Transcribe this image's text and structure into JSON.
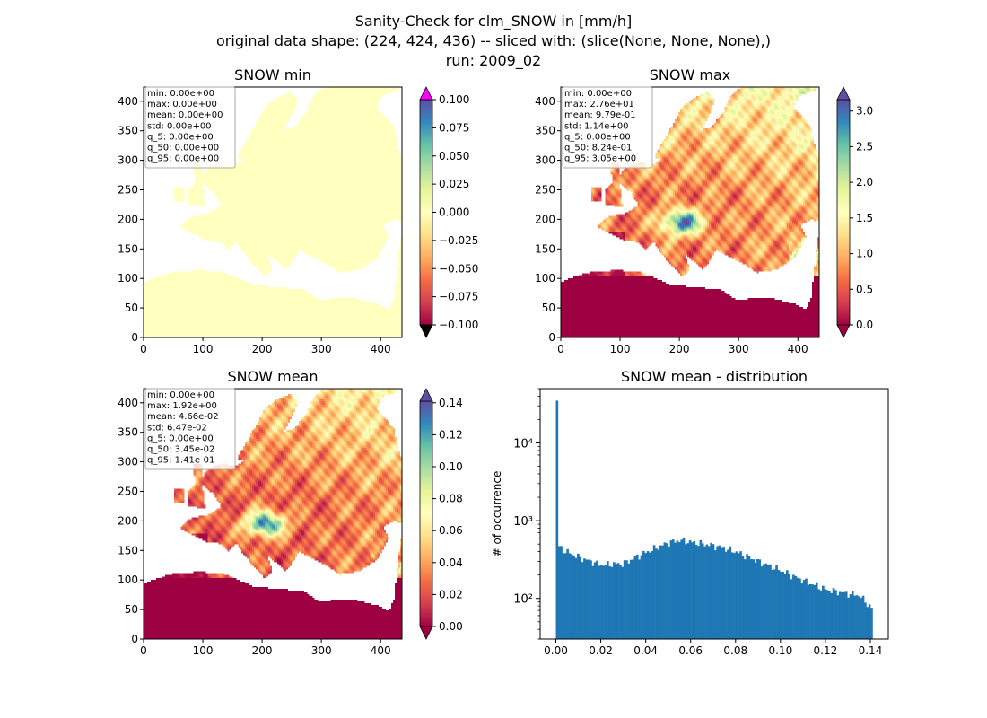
{
  "figure": {
    "title_lines": [
      "Sanity-Check for clm_SNOW in [mm/h]",
      "original data shape: (224, 424, 436) -- sliced with: (slice(None, None, None),)",
      "run: 2009_02"
    ]
  },
  "colormap": {
    "name": "Spectral",
    "stops": [
      "#9e0142",
      "#d53e4f",
      "#f46d43",
      "#fdae61",
      "#fee08b",
      "#ffffbf",
      "#e6f598",
      "#abdda4",
      "#66c2a5",
      "#3288bd",
      "#5e4fa2"
    ],
    "over_min_panel": "#ff00ff",
    "under": "#000000"
  },
  "chart_data": [
    {
      "type": "heatmap",
      "title": "SNOW min",
      "xlim": [
        0,
        436
      ],
      "ylim": [
        0,
        424
      ],
      "xticks": [
        "0",
        "100",
        "200",
        "300",
        "400"
      ],
      "yticks": [
        "0",
        "50",
        "100",
        "150",
        "200",
        "250",
        "300",
        "350",
        "400"
      ],
      "colorbar": {
        "range": [
          -0.1,
          0.1
        ],
        "ticks": [
          "−0.100",
          "−0.075",
          "−0.050",
          "−0.025",
          "0.000",
          "0.025",
          "0.050",
          "0.075",
          "0.100"
        ],
        "extend": "both"
      },
      "stats": [
        "min: 0.00e+00",
        "max: 0.00e+00",
        "mean: 0.00e+00",
        "std: 0.00e+00",
        "q_5: 0.00e+00",
        "q_50: 0.00e+00",
        "q_95: 0.00e+00"
      ],
      "land_color": "#ffffbf"
    },
    {
      "type": "heatmap",
      "title": "SNOW max",
      "xlim": [
        0,
        436
      ],
      "ylim": [
        0,
        424
      ],
      "xticks": [
        "0",
        "100",
        "200",
        "300",
        "400"
      ],
      "yticks": [
        "0",
        "50",
        "100",
        "150",
        "200",
        "250",
        "300",
        "350",
        "400"
      ],
      "colorbar": {
        "range": [
          0,
          3.16
        ],
        "ticks": [
          "0.0",
          "0.5",
          "1.0",
          "1.5",
          "2.0",
          "2.5",
          "3.0"
        ],
        "extend": "both"
      },
      "stats": [
        "min: 0.00e+00",
        "max: 2.76e+01",
        "mean: 9.79e-01",
        "std: 1.14e+00",
        "q_5: 0.00e+00",
        "q_50: 8.24e-01",
        "q_95: 3.05e+00"
      ]
    },
    {
      "type": "heatmap",
      "title": "SNOW mean",
      "xlim": [
        0,
        436
      ],
      "ylim": [
        0,
        424
      ],
      "xticks": [
        "0",
        "100",
        "200",
        "300",
        "400"
      ],
      "yticks": [
        "0",
        "50",
        "100",
        "150",
        "200",
        "250",
        "300",
        "350",
        "400"
      ],
      "colorbar": {
        "range": [
          0,
          0.141
        ],
        "ticks": [
          "0.00",
          "0.02",
          "0.04",
          "0.06",
          "0.08",
          "0.10",
          "0.12",
          "0.14"
        ],
        "extend": "both"
      },
      "stats": [
        "min: 0.00e+00",
        "max: 1.92e+00",
        "mean: 4.66e-02",
        "std: 6.47e-02",
        "q_5: 0.00e+00",
        "q_50: 3.45e-02",
        "q_95: 1.41e-01"
      ]
    },
    {
      "type": "bar",
      "title": "SNOW mean - distribution",
      "ylabel": "# of occurrence",
      "yscale": "log",
      "xlim": [
        -0.007,
        0.148
      ],
      "ylim": [
        30,
        50000
      ],
      "xticks": [
        "0.00",
        "0.02",
        "0.04",
        "0.06",
        "0.08",
        "0.10",
        "0.12",
        "0.14"
      ],
      "yticks": [
        "10²",
        "10³",
        "10⁴"
      ],
      "bar_color": "#1f77b4",
      "bins": {
        "start": 0.0,
        "end": 0.141,
        "count": 150
      },
      "profile": [
        [
          0.0,
          35000
        ],
        [
          0.0009,
          480
        ],
        [
          0.003,
          420
        ],
        [
          0.01,
          340
        ],
        [
          0.02,
          270
        ],
        [
          0.03,
          280
        ],
        [
          0.04,
          390
        ],
        [
          0.05,
          520
        ],
        [
          0.055,
          560
        ],
        [
          0.06,
          530
        ],
        [
          0.07,
          480
        ],
        [
          0.08,
          400
        ],
        [
          0.09,
          300
        ],
        [
          0.1,
          230
        ],
        [
          0.11,
          170
        ],
        [
          0.12,
          130
        ],
        [
          0.13,
          115
        ],
        [
          0.135,
          110
        ],
        [
          0.1405,
          75
        ]
      ]
    }
  ]
}
